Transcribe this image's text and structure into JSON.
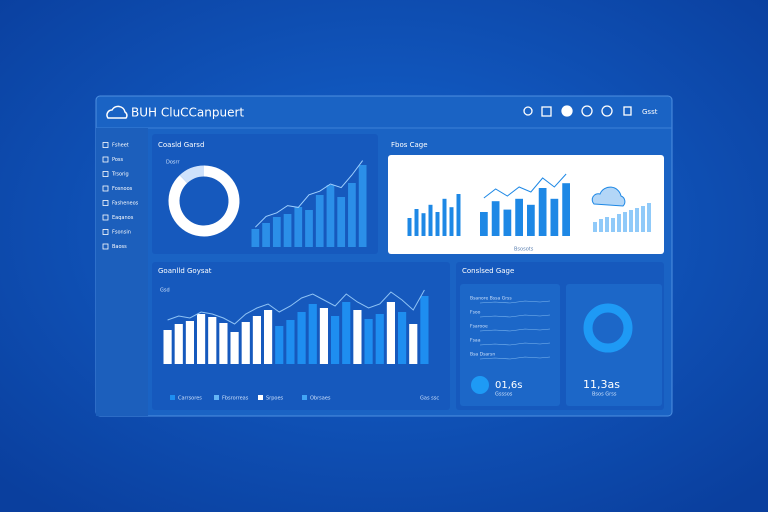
{
  "header": {
    "title": "BUH CluCCanpuert"
  },
  "sidebar": {
    "items": [
      "Fsheet",
      "Poss",
      "Trsorig",
      "Fosnoos",
      "Fasheneos",
      "Eaqanos",
      "Fsonsin",
      "Baoss"
    ]
  },
  "panels": {
    "top_left": {
      "title": "Coasld Garsd",
      "legend": "Dosrr",
      "donut": {
        "values": [
          88,
          12
        ],
        "colors": [
          "#ffffff",
          "#cfe2fb"
        ]
      },
      "bars": {
        "values": [
          18,
          24,
          30,
          33,
          40,
          37,
          52,
          62,
          50,
          64,
          82
        ],
        "color": "#2b8fe8"
      },
      "line": {
        "values": [
          22,
          34,
          38,
          46,
          44,
          58,
          62,
          70,
          66,
          80,
          96
        ],
        "color": "#9fd0ff"
      }
    },
    "top_right": {
      "title": "Fbos Cage",
      "caption": "Bsosots",
      "bars_a": {
        "values": [
          30,
          45,
          38,
          52,
          40,
          62,
          48,
          70
        ],
        "color": "#1e88e5"
      },
      "bars_b": {
        "values": [
          40,
          58,
          44,
          62,
          52,
          80,
          62,
          88
        ],
        "color": "#1e88e5"
      },
      "bars_c": {
        "values": [
          20,
          26,
          30,
          28,
          36,
          40,
          44,
          48,
          52,
          58
        ],
        "color": "#90caf9"
      }
    },
    "bottom_left": {
      "title": "Goanlld Goysat",
      "label": "Gsd",
      "bars": {
        "values": [
          34,
          40,
          43,
          50,
          47,
          41,
          32,
          42,
          48,
          54,
          38,
          44,
          52,
          60,
          56,
          48,
          62,
          54,
          45,
          50,
          62,
          52,
          40,
          68
        ],
        "colors": [
          "#ffffff",
          "#ffffff",
          "#ffffff",
          "#ffffff",
          "#ffffff",
          "#ffffff",
          "#ffffff",
          "#ffffff",
          "#ffffff",
          "#ffffff",
          "#1e8ef0",
          "#1e8ef0",
          "#1e8ef0",
          "#1e8ef0",
          "#ffffff",
          "#1e8ef0",
          "#1e8ef0",
          "#ffffff",
          "#1e8ef0",
          "#1e8ef0",
          "#ffffff",
          "#1e8ef0",
          "#ffffff",
          "#1e8ef0"
        ]
      },
      "line": {
        "values": [
          44,
          48,
          46,
          52,
          50,
          46,
          40,
          50,
          56,
          60,
          52,
          58,
          66,
          70,
          64,
          58,
          70,
          62,
          56,
          60,
          72,
          64,
          54,
          74
        ]
      },
      "legend": [
        {
          "name": "Carrsores",
          "color": "#1e8ef0"
        },
        {
          "name": "Fbsrorreas",
          "color": "#64b5f6"
        },
        {
          "name": "Srpoes",
          "color": "#ffffff"
        },
        {
          "name": "Obrsaes",
          "color": "#42a5f5"
        }
      ],
      "link": "Gas ssc"
    },
    "bottom_right": {
      "title": "Conslsed Gage",
      "rows": [
        "Bsanore Bssa Grss",
        "Fsoo",
        "Fsarooe",
        "Fsaa",
        "Bsa Dsarsn"
      ],
      "left_value": "01,6s",
      "left_caption": "Gsssos",
      "right_value": "11,3as",
      "right_caption": "Bsos Grss"
    }
  }
}
